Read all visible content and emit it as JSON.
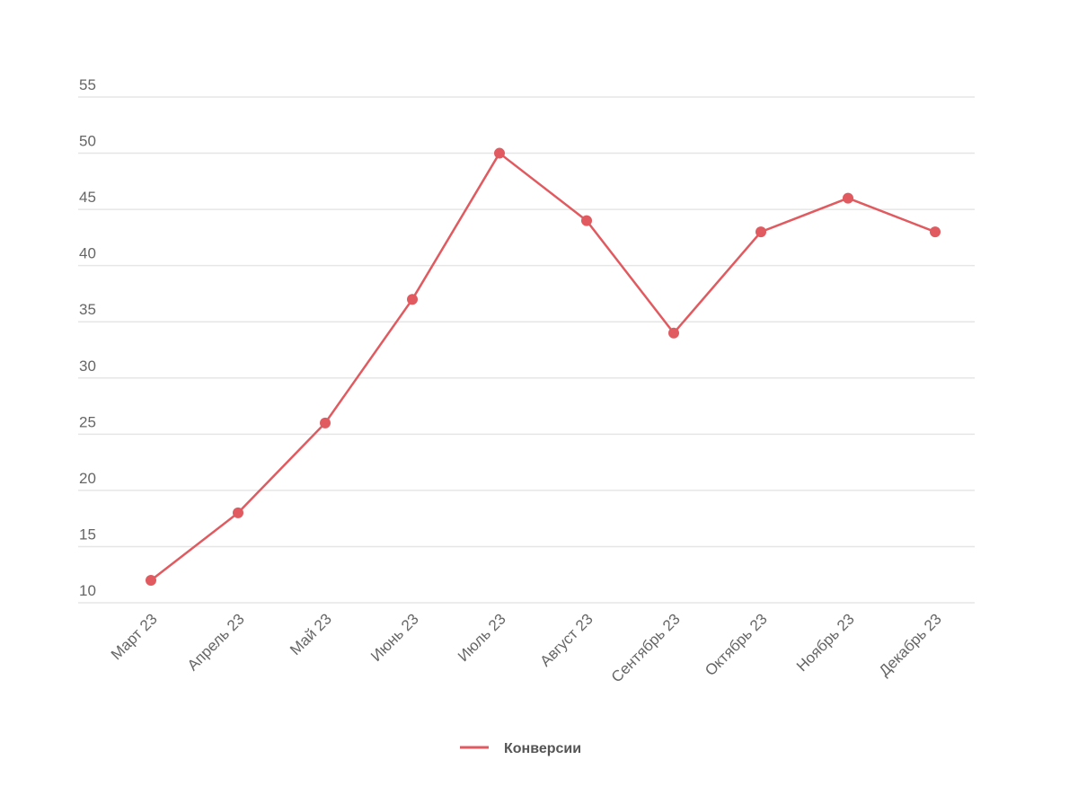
{
  "chart_data": {
    "type": "line",
    "categories": [
      "Март 23",
      "Апрель 23",
      "Май 23",
      "Июнь 23",
      "Июль 23",
      "Август 23",
      "Сентябрь 23",
      "Октябрь 23",
      "Ноябрь 23",
      "Декабрь 23"
    ],
    "series": [
      {
        "name": "Конверсии",
        "color": "#e05a5f",
        "values": [
          12,
          18,
          26,
          37,
          50,
          44,
          34,
          43,
          46,
          43
        ]
      }
    ],
    "ylim": [
      10,
      55
    ],
    "yticks": [
      "10",
      "15",
      "20",
      "25",
      "30",
      "35",
      "40",
      "45",
      "50",
      "55"
    ],
    "grid": true,
    "legend_position": "bottom-center",
    "title": "",
    "xlabel": "",
    "ylabel": ""
  }
}
